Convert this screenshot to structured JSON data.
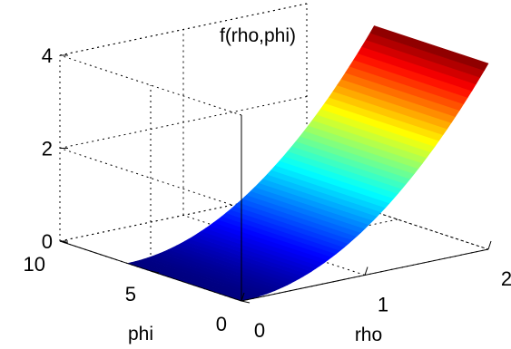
{
  "chart_data": {
    "type": "surface",
    "title": "f(rho,phi)",
    "xlabel": "rho",
    "ylabel": "phi",
    "zlabel": "",
    "x_ticks": [
      "0",
      "1",
      "2"
    ],
    "y_ticks": [
      "0",
      "5",
      "10"
    ],
    "z_ticks": [
      "0",
      "2",
      "4"
    ],
    "xlim": [
      0,
      2
    ],
    "ylim": [
      0,
      10
    ],
    "zlim": [
      0,
      4
    ],
    "function": "rho^2",
    "grid": true,
    "colormap": "jet",
    "rho_range": [
      0,
      2
    ],
    "phi_range": [
      0,
      6.2832
    ]
  }
}
